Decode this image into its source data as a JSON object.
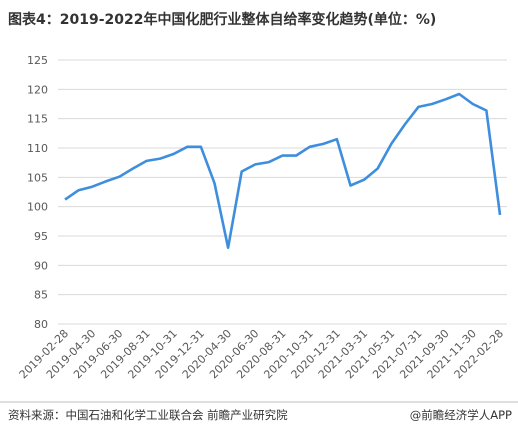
{
  "chart_data": {
    "type": "line",
    "title": "图表4：2019-2022年中国化肥行业整体自给率变化趋势(单位：%)",
    "source": "资料来源：中国石油和化学工业联合会 前瞻产业研究院",
    "credit": "@前瞻经济学人APP",
    "categories": [
      "2019-02-28",
      null,
      "2019-04-30",
      null,
      "2019-06-30",
      null,
      "2019-08-31",
      null,
      "2019-10-31",
      null,
      "2019-12-31",
      null,
      "2020-04-30",
      null,
      "2020-06-30",
      null,
      "2020-08-31",
      null,
      "2020-10-31",
      null,
      "2020-12-31",
      null,
      "2021-03-31",
      null,
      "2021-05-31",
      null,
      "2021-07-31",
      null,
      "2021-09-30",
      null,
      "2021-11-30",
      null,
      "2022-02-28"
    ],
    "series": [
      {
        "name": "自给率",
        "color": "#3e8ede",
        "values": [
          101.2,
          102.8,
          103.4,
          104.3,
          105.1,
          106.5,
          107.8,
          108.2,
          109.0,
          110.2,
          110.2,
          104.0,
          93.0,
          106.0,
          107.2,
          107.6,
          108.7,
          108.7,
          110.2,
          110.7,
          111.5,
          103.6,
          104.6,
          106.5,
          110.7,
          114.0,
          117.0,
          117.5,
          118.3,
          119.2,
          117.5,
          116.4,
          98.6
        ]
      }
    ],
    "ylim": [
      80,
      125
    ],
    "yticks": [
      80,
      85,
      90,
      95,
      100,
      105,
      110,
      115,
      120,
      125
    ],
    "grid": true
  }
}
